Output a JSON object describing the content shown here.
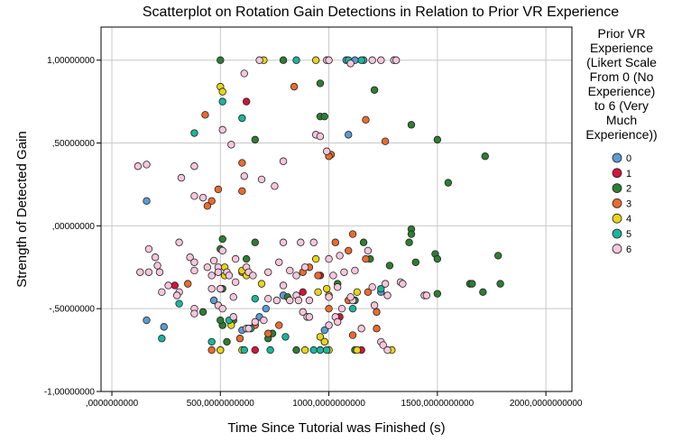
{
  "chart_data": {
    "type": "scatter",
    "title": "Scatterplot on Rotation Gain Detections in Relation to Prior VR Experience",
    "xlabel": "Time Since Tutorial was Finished (s)",
    "ylabel": "Strength of Detected Gain",
    "xlim": [
      -50,
      2120
    ],
    "ylim": [
      -1.0,
      1.2
    ],
    "x_ticks": [
      {
        "value": 0,
        "label": ",0000000000"
      },
      {
        "value": 500,
        "label": "500,0000000000"
      },
      {
        "value": 1000,
        "label": "1000,0000000000"
      },
      {
        "value": 1500,
        "label": "1500,0000000000"
      },
      {
        "value": 2000,
        "label": "2000,0000000000"
      }
    ],
    "y_ticks": [
      {
        "value": -1.0,
        "label": "-1,00000000"
      },
      {
        "value": -0.5,
        "label": "-,50000000"
      },
      {
        "value": 0.0,
        "label": ",00000000"
      },
      {
        "value": 0.5,
        "label": ",50000000"
      },
      {
        "value": 1.0,
        "label": "1,00000000"
      }
    ],
    "grid": true,
    "legend_title_lines": [
      "Prior VR",
      "Experience",
      "(Likert Scale",
      "From 0 (No",
      "Experience)",
      "to 6 (Very",
      "Much",
      "Experience))"
    ],
    "legend_position": "right",
    "series": [
      {
        "name": "0",
        "color": "#5b9bd5",
        "points": [
          [
            1080,
            1.0
          ],
          [
            1160,
            1.0
          ],
          [
            1120,
            1.0
          ],
          [
            1090,
            0.55
          ],
          [
            160,
            0.15
          ],
          [
            160,
            -0.57
          ],
          [
            240,
            -0.61
          ],
          [
            710,
            -0.5
          ],
          [
            980,
            -0.63
          ],
          [
            680,
            -0.55
          ],
          [
            980,
            -0.7
          ],
          [
            790,
            -0.42
          ],
          [
            1240,
            -0.4
          ],
          [
            470,
            -0.45
          ],
          [
            600,
            -0.63
          ]
        ]
      },
      {
        "name": "1",
        "color": "#d2143c",
        "points": [
          [
            620,
            0.75
          ],
          [
            290,
            -0.36
          ],
          [
            510,
            -0.6
          ],
          [
            660,
            -0.75
          ],
          [
            1150,
            -0.75
          ],
          [
            960,
            -0.3
          ],
          [
            1050,
            -0.55
          ],
          [
            880,
            -0.4
          ]
        ]
      },
      {
        "name": "2",
        "color": "#2e7d32",
        "points": [
          [
            500,
            1.0
          ],
          [
            790,
            1.0
          ],
          [
            960,
            0.86
          ],
          [
            1210,
            0.82
          ],
          [
            960,
            0.66
          ],
          [
            980,
            0.66
          ],
          [
            1380,
            0.61
          ],
          [
            1500,
            0.52
          ],
          [
            660,
            0.52
          ],
          [
            1720,
            0.42
          ],
          [
            1550,
            0.26
          ],
          [
            1380,
            -0.02
          ],
          [
            1380,
            -0.05
          ],
          [
            1370,
            -0.1
          ],
          [
            1160,
            -0.1
          ],
          [
            1190,
            -0.2
          ],
          [
            1490,
            -0.17
          ],
          [
            1500,
            -0.2
          ],
          [
            1780,
            -0.18
          ],
          [
            1400,
            -0.22
          ],
          [
            1710,
            -0.4
          ],
          [
            1650,
            -0.35
          ],
          [
            1660,
            -0.35
          ],
          [
            1790,
            -0.35
          ],
          [
            1500,
            -0.41
          ],
          [
            1280,
            -0.24
          ],
          [
            660,
            -0.1
          ],
          [
            510,
            -0.08
          ],
          [
            500,
            -0.14
          ],
          [
            510,
            -0.38
          ],
          [
            560,
            -0.57
          ],
          [
            510,
            -0.6
          ],
          [
            500,
            -0.57
          ],
          [
            720,
            -0.68
          ],
          [
            810,
            -0.43
          ],
          [
            850,
            -0.75
          ],
          [
            1120,
            -0.75
          ],
          [
            960,
            -0.75
          ],
          [
            1000,
            -0.6
          ],
          [
            1040,
            -0.35
          ],
          [
            1120,
            -0.45
          ],
          [
            420,
            -0.52
          ],
          [
            500,
            -0.75
          ],
          [
            530,
            -0.7
          ],
          [
            620,
            -0.2
          ],
          [
            740,
            -0.65
          ]
        ]
      },
      {
        "name": "3",
        "color": "#ea6b2e",
        "points": [
          [
            840,
            0.84
          ],
          [
            430,
            0.67
          ],
          [
            1170,
            0.64
          ],
          [
            1260,
            0.51
          ],
          [
            1010,
            0.43
          ],
          [
            1000,
            0.42
          ],
          [
            600,
            0.38
          ],
          [
            490,
            0.22
          ],
          [
            460,
            0.15
          ],
          [
            440,
            0.12
          ],
          [
            600,
            0.21
          ],
          [
            1110,
            -0.05
          ],
          [
            1030,
            -0.1
          ],
          [
            1090,
            -0.15
          ],
          [
            910,
            -0.25
          ],
          [
            1170,
            -0.2
          ],
          [
            600,
            -0.28
          ],
          [
            880,
            -0.28
          ],
          [
            950,
            -0.3
          ],
          [
            1180,
            -0.4
          ],
          [
            1090,
            -0.45
          ],
          [
            1000,
            -0.5
          ],
          [
            770,
            -0.6
          ],
          [
            720,
            -0.65
          ],
          [
            660,
            -0.6
          ],
          [
            460,
            -0.75
          ],
          [
            1220,
            -0.52
          ],
          [
            1110,
            -0.66
          ],
          [
            350,
            -0.35
          ],
          [
            590,
            -0.68
          ],
          [
            1220,
            -0.62
          ]
        ]
      },
      {
        "name": "4",
        "color": "#e6d617",
        "points": [
          [
            700,
            1.0
          ],
          [
            940,
            1.0
          ],
          [
            500,
            0.84
          ],
          [
            510,
            0.81
          ],
          [
            1130,
            -0.75
          ],
          [
            1290,
            -0.75
          ],
          [
            890,
            -0.75
          ],
          [
            1000,
            -0.75
          ],
          [
            1130,
            -0.4
          ],
          [
            960,
            -0.67
          ],
          [
            980,
            -0.7
          ],
          [
            500,
            -0.75
          ],
          [
            600,
            -0.27
          ],
          [
            620,
            -0.3
          ],
          [
            500,
            -0.38
          ],
          [
            520,
            -0.3
          ],
          [
            520,
            -0.25
          ],
          [
            690,
            -0.35
          ],
          [
            950,
            -0.4
          ],
          [
            990,
            -0.38
          ],
          [
            1000,
            -0.42
          ],
          [
            940,
            -0.2
          ],
          [
            600,
            -0.75
          ],
          [
            550,
            -0.6
          ]
        ]
      },
      {
        "name": "5",
        "color": "#1ab69a",
        "points": [
          [
            850,
            1.0
          ],
          [
            1090,
            1.0
          ],
          [
            1150,
            1.0
          ],
          [
            510,
            0.75
          ],
          [
            600,
            0.65
          ],
          [
            380,
            0.56
          ],
          [
            1240,
            -0.38
          ],
          [
            660,
            -0.44
          ],
          [
            310,
            -0.47
          ],
          [
            540,
            -0.57
          ],
          [
            230,
            -0.68
          ],
          [
            460,
            -0.7
          ],
          [
            610,
            -0.75
          ],
          [
            730,
            -0.75
          ],
          [
            930,
            -0.75
          ],
          [
            800,
            -0.67
          ],
          [
            960,
            -0.75
          ],
          [
            990,
            -0.75
          ],
          [
            1110,
            -0.5
          ],
          [
            640,
            -0.62
          ]
        ]
      },
      {
        "name": "6",
        "color": "#f8c6dc",
        "points": [
          [
            680,
            1.0
          ],
          [
            990,
            1.0
          ],
          [
            1000,
            1.0
          ],
          [
            1200,
            1.0
          ],
          [
            1240,
            1.0
          ],
          [
            1300,
            1.0
          ],
          [
            1310,
            1.0
          ],
          [
            610,
            0.92
          ],
          [
            1100,
            0.98
          ],
          [
            510,
            0.58
          ],
          [
            550,
            0.49
          ],
          [
            940,
            0.55
          ],
          [
            960,
            0.54
          ],
          [
            990,
            0.45
          ],
          [
            790,
            0.39
          ],
          [
            120,
            0.36
          ],
          [
            160,
            0.37
          ],
          [
            380,
            0.36
          ],
          [
            320,
            0.29
          ],
          [
            610,
            0.3
          ],
          [
            690,
            0.28
          ],
          [
            750,
            0.24
          ],
          [
            380,
            0.18
          ],
          [
            420,
            0.17
          ],
          [
            310,
            -0.1
          ],
          [
            170,
            -0.14
          ],
          [
            200,
            -0.19
          ],
          [
            210,
            -0.24
          ],
          [
            360,
            -0.19
          ],
          [
            380,
            -0.22
          ],
          [
            380,
            -0.27
          ],
          [
            460,
            -0.3
          ],
          [
            490,
            -0.25
          ],
          [
            530,
            -0.28
          ],
          [
            540,
            -0.3
          ],
          [
            570,
            -0.34
          ],
          [
            620,
            -0.25
          ],
          [
            630,
            -0.28
          ],
          [
            770,
            -0.22
          ],
          [
            850,
            -0.3
          ],
          [
            790,
            -0.36
          ],
          [
            850,
            -0.42
          ],
          [
            860,
            -0.45
          ],
          [
            910,
            -0.45
          ],
          [
            1040,
            -0.37
          ],
          [
            1020,
            -0.3
          ],
          [
            1070,
            -0.28
          ],
          [
            1110,
            -0.45
          ],
          [
            1200,
            -0.37
          ],
          [
            1260,
            -0.35
          ],
          [
            1270,
            -0.42
          ],
          [
            1330,
            -0.34
          ],
          [
            1340,
            -0.35
          ],
          [
            1440,
            -0.42
          ],
          [
            1450,
            -0.42
          ],
          [
            130,
            -0.28
          ],
          [
            170,
            -0.28
          ],
          [
            220,
            -0.28
          ],
          [
            230,
            -0.4
          ],
          [
            260,
            -0.36
          ],
          [
            310,
            -0.4
          ],
          [
            300,
            -0.42
          ],
          [
            380,
            -0.5
          ],
          [
            380,
            -0.53
          ],
          [
            460,
            -0.38
          ],
          [
            490,
            -0.48
          ],
          [
            510,
            -0.5
          ],
          [
            560,
            -0.55
          ],
          [
            620,
            -0.62
          ],
          [
            630,
            -0.62
          ],
          [
            660,
            -0.58
          ],
          [
            700,
            -0.57
          ],
          [
            720,
            -0.44
          ],
          [
            760,
            -0.45
          ],
          [
            820,
            -0.45
          ],
          [
            880,
            -0.52
          ],
          [
            900,
            -0.55
          ],
          [
            910,
            -0.55
          ],
          [
            1030,
            -0.55
          ],
          [
            1000,
            -0.6
          ],
          [
            1040,
            -0.58
          ],
          [
            1060,
            -0.5
          ],
          [
            1150,
            -0.62
          ],
          [
            1240,
            -0.7
          ],
          [
            1250,
            -0.72
          ],
          [
            1270,
            -0.75
          ],
          [
            1210,
            -0.48
          ],
          [
            1100,
            -0.43
          ],
          [
            1050,
            -0.18
          ],
          [
            1000,
            -0.2
          ],
          [
            890,
            -0.25
          ],
          [
            820,
            -0.27
          ],
          [
            720,
            -0.28
          ],
          [
            650,
            -0.3
          ],
          [
            570,
            -0.2
          ],
          [
            510,
            -0.15
          ],
          [
            500,
            -0.38
          ],
          [
            560,
            -0.43
          ],
          [
            490,
            -0.28
          ],
          [
            470,
            -0.21
          ],
          [
            440,
            -0.25
          ],
          [
            1000,
            -0.43
          ],
          [
            1120,
            -0.27
          ],
          [
            1180,
            -0.15
          ],
          [
            870,
            -0.1
          ],
          [
            930,
            -0.1
          ],
          [
            790,
            -0.1
          ]
        ]
      }
    ]
  }
}
